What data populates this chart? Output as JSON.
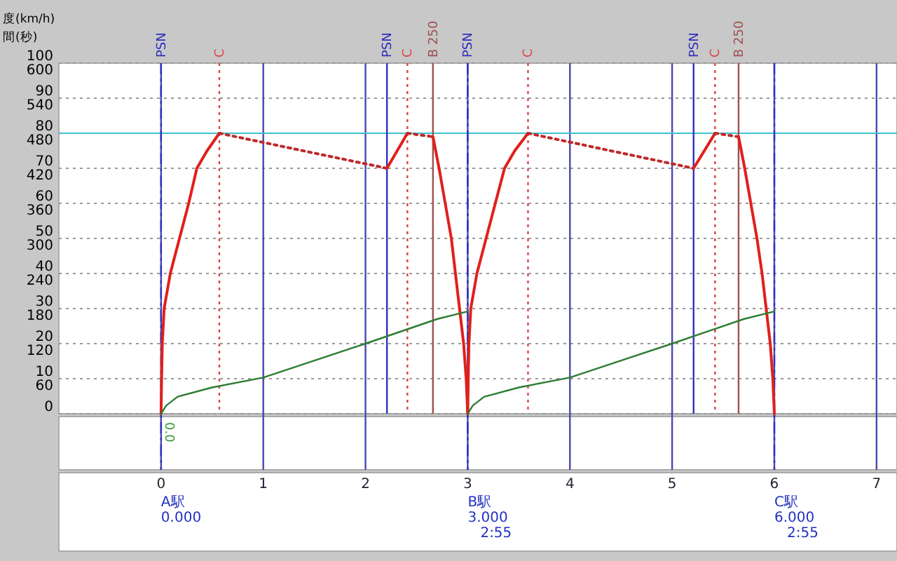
{
  "chart_data": {
    "type": "line",
    "xlim": [
      -1,
      7.2
    ],
    "xticks": [
      0,
      1,
      2,
      3,
      4,
      5,
      6,
      7
    ],
    "ylim": [
      0,
      100
    ],
    "yticks": [
      0,
      10,
      20,
      30,
      40,
      50,
      60,
      70,
      80,
      90,
      100
    ],
    "y2lim": [
      0,
      600
    ],
    "y2ticks": [
      60,
      120,
      180,
      240,
      300,
      360,
      420,
      480,
      540,
      600
    ],
    "grid": true,
    "series": [
      {
        "color": "#e0201c",
        "line_style": "solid",
        "x": [
          0,
          0.005,
          0.012,
          0.03,
          0.09,
          0.18,
          0.27,
          0.35,
          0.45,
          0.57
        ],
        "values": [
          0,
          10,
          20,
          30,
          40,
          50,
          60,
          70,
          75,
          80
        ]
      },
      {
        "color": "#c0282a",
        "line_style": "dotted",
        "x": [
          0.57,
          2.21
        ],
        "values": [
          80,
          70
        ]
      },
      {
        "color": "#e0201c",
        "line_style": "solid",
        "x": [
          2.21,
          2.41
        ],
        "values": [
          70,
          80
        ]
      },
      {
        "color": "#c0282a",
        "line_style": "dotted",
        "x": [
          2.41,
          2.66
        ],
        "values": [
          80,
          79
        ]
      },
      {
        "color": "#e0201c",
        "line_style": "solid",
        "x": [
          2.66,
          2.72,
          2.78,
          2.84,
          2.88,
          2.92,
          2.96,
          2.985,
          3
        ],
        "values": [
          79,
          70,
          60,
          50,
          40,
          30,
          20,
          10,
          0
        ]
      },
      {
        "color": "#e0201c",
        "line_style": "solid",
        "x": [
          3,
          3.005,
          3.012,
          3.03,
          3.09,
          3.18,
          3.27,
          3.36,
          3.46,
          3.59
        ],
        "values": [
          0,
          10,
          20,
          30,
          40,
          50,
          60,
          70,
          75,
          80
        ]
      },
      {
        "color": "#c0282a",
        "line_style": "dotted",
        "x": [
          3.59,
          5.21
        ],
        "values": [
          80,
          70
        ]
      },
      {
        "color": "#e0201c",
        "line_style": "solid",
        "x": [
          5.21,
          5.42
        ],
        "values": [
          70,
          80
        ]
      },
      {
        "color": "#c0282a",
        "line_style": "dotted",
        "x": [
          5.42,
          5.65
        ],
        "values": [
          80,
          79
        ]
      },
      {
        "color": "#e0201c",
        "line_style": "solid",
        "x": [
          5.65,
          5.71,
          5.77,
          5.83,
          5.88,
          5.92,
          5.96,
          5.985,
          6
        ],
        "values": [
          79,
          70,
          60,
          50,
          40,
          30,
          20,
          10,
          0
        ]
      },
      {
        "color": "#2e7d32",
        "line_style": "solid",
        "axis": "y2",
        "x": [
          0,
          0.05,
          0.16,
          0.5,
          1,
          2,
          2.7,
          3
        ],
        "values": [
          0,
          14,
          29,
          45,
          62,
          120,
          162,
          175
        ]
      },
      {
        "color": "#2e7d32",
        "line_style": "solid",
        "axis": "y2",
        "x": [
          3,
          3.05,
          3.16,
          3.5,
          4,
          5,
          5.7,
          6
        ],
        "values": [
          0,
          14,
          29,
          45,
          62,
          120,
          162,
          175
        ]
      }
    ],
    "ref_lines": [
      {
        "axis": "y",
        "value": 80,
        "color": "#40c0d0",
        "line_style": "solid"
      },
      {
        "axis": "x",
        "value": 0,
        "label": "PSN",
        "color": "#3030c0",
        "line_style": "dashed"
      },
      {
        "axis": "x",
        "value": 3,
        "label": "PSN",
        "color": "#3030c0",
        "line_style": "dashed"
      },
      {
        "axis": "x",
        "value": 6,
        "color": "#3030c0",
        "line_style": "dashed"
      },
      {
        "axis": "x",
        "value": 2.21,
        "label": "PSN",
        "color": "#3030c0",
        "line_style": "solid"
      },
      {
        "axis": "x",
        "value": 5.21,
        "label": "PSN",
        "color": "#3030c0",
        "line_style": "solid"
      },
      {
        "axis": "x",
        "value": 0.57,
        "label": "C",
        "color": "#e04040",
        "line_style": "dotted"
      },
      {
        "axis": "x",
        "value": 2.41,
        "label": "C",
        "color": "#e04040",
        "line_style": "dotted"
      },
      {
        "axis": "x",
        "value": 3.59,
        "label": "C",
        "color": "#e04040",
        "line_style": "dotted"
      },
      {
        "axis": "x",
        "value": 5.42,
        "label": "C",
        "color": "#e04040",
        "line_style": "dotted"
      },
      {
        "axis": "x",
        "value": 2.66,
        "label": "B 250",
        "color": "#a05050",
        "line_style": "solid"
      },
      {
        "axis": "x",
        "value": 5.65,
        "label": "B 250",
        "color": "#a05050",
        "line_style": "solid"
      }
    ],
    "annotations": [
      {
        "text": "0.0",
        "x": 0
      },
      "A駅\n0.000",
      "B駅\n3.000\n2:55",
      "C駅\n6.000\n2:55",
      "度(km/h)",
      "間(秒)"
    ]
  }
}
